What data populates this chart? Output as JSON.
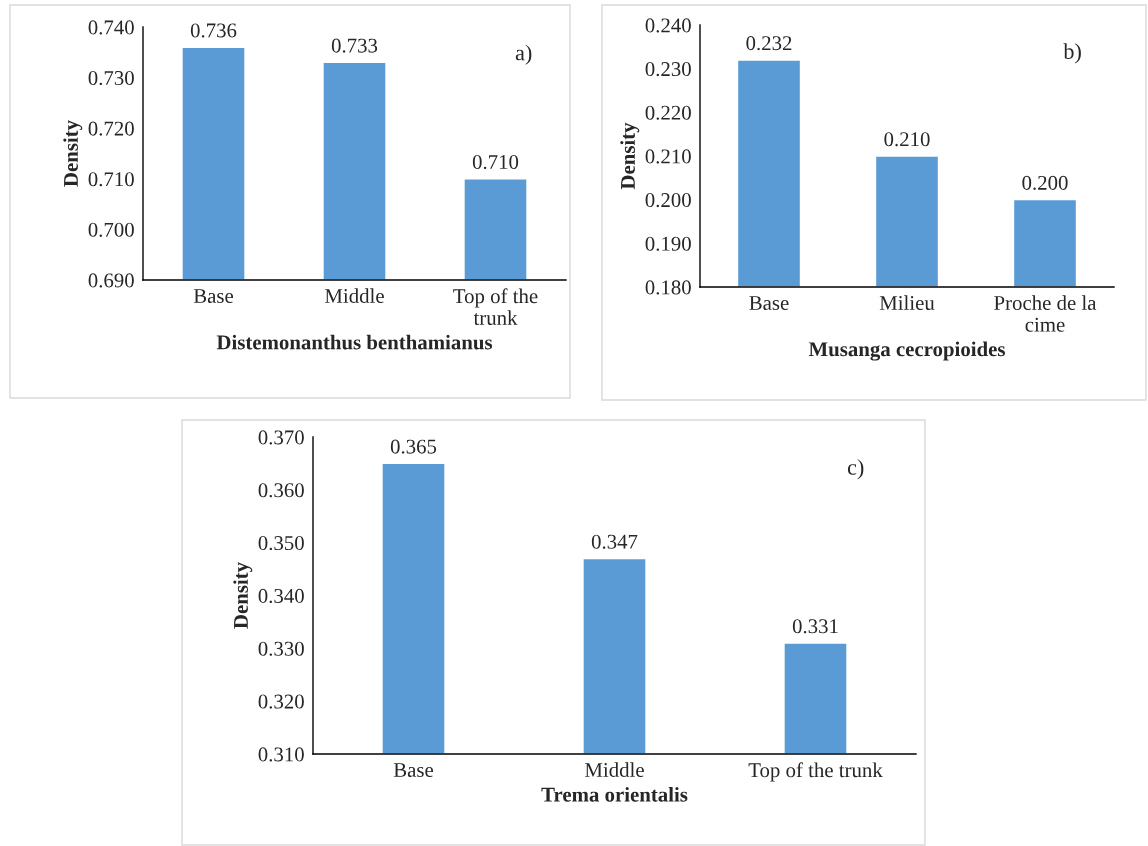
{
  "chart_data": [
    {
      "type": "bar",
      "xlabel": "Distemonanthus benthamianus",
      "ylabel": "Density",
      "annotations": [
        "a)"
      ],
      "categories": [
        "Base",
        "Middle",
        "Top of the trunk"
      ],
      "values": [
        0.736,
        0.733,
        0.71
      ],
      "value_labels": [
        "0.736",
        "0.733",
        "0.710"
      ],
      "color": "#5b9bd5",
      "ylim": [
        0.69,
        0.74
      ],
      "yticks": [
        {
          "value": 0.69,
          "label": "0.690"
        },
        {
          "value": 0.7,
          "label": "0.700"
        },
        {
          "value": 0.71,
          "label": "0.710"
        },
        {
          "value": 0.72,
          "label": "0.720"
        },
        {
          "value": 0.73,
          "label": "0.730"
        },
        {
          "value": 0.74,
          "label": "0.740"
        }
      ],
      "grid": false,
      "legend": false
    },
    {
      "type": "bar",
      "xlabel": "Musanga cecropioides",
      "ylabel": "Density",
      "annotations": [
        "b)"
      ],
      "categories": [
        "Base",
        "Milieu",
        "Proche de la cime"
      ],
      "values": [
        0.232,
        0.21,
        0.2
      ],
      "value_labels": [
        "0.232",
        "0.210",
        "0.200"
      ],
      "color": "#5b9bd5",
      "ylim": [
        0.18,
        0.24
      ],
      "yticks": [
        {
          "value": 0.18,
          "label": "0.180"
        },
        {
          "value": 0.19,
          "label": "0.190"
        },
        {
          "value": 0.2,
          "label": "0.200"
        },
        {
          "value": 0.21,
          "label": "0.210"
        },
        {
          "value": 0.22,
          "label": "0.220"
        },
        {
          "value": 0.23,
          "label": "0.230"
        },
        {
          "value": 0.24,
          "label": "0.240"
        }
      ],
      "grid": false,
      "legend": false
    },
    {
      "type": "bar",
      "xlabel": "Trema orientalis",
      "ylabel": "Density",
      "annotations": [
        "c)"
      ],
      "categories": [
        "Base",
        "Middle",
        "Top of the trunk"
      ],
      "values": [
        0.365,
        0.347,
        0.331
      ],
      "value_labels": [
        "0.365",
        "0.347",
        "0.331"
      ],
      "color": "#5b9bd5",
      "ylim": [
        0.31,
        0.37
      ],
      "yticks": [
        {
          "value": 0.31,
          "label": "0.310"
        },
        {
          "value": 0.32,
          "label": "0.320"
        },
        {
          "value": 0.33,
          "label": "0.330"
        },
        {
          "value": 0.34,
          "label": "0.340"
        },
        {
          "value": 0.35,
          "label": "0.350"
        },
        {
          "value": 0.36,
          "label": "0.360"
        },
        {
          "value": 0.37,
          "label": "0.370"
        }
      ],
      "grid": false,
      "legend": false
    }
  ]
}
